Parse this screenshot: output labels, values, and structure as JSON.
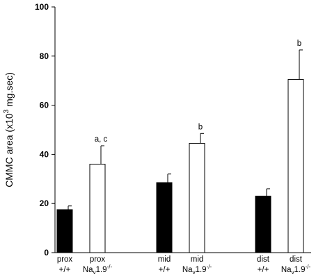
{
  "chart_data": {
    "type": "bar",
    "ylabel": {
      "prefix": "CMMC area (x10",
      "exp": "3",
      "suffix": " mg.sec)"
    },
    "ylim": [
      0,
      100
    ],
    "yticks": [
      "0",
      "20",
      "40",
      "60",
      "80",
      "100"
    ],
    "grid": false,
    "legend": "none",
    "bars": [
      {
        "line1": "prox",
        "line2": "+/+",
        "genotype": "wildtype",
        "value": 17.5,
        "error": 1.5,
        "color": "#000000",
        "annotation": ""
      },
      {
        "line1": "prox",
        "line2_base": "Na",
        "line2_sub": "v",
        "line2_mid": "1.9",
        "line2_sup": "-/-",
        "genotype": "knockout",
        "value": 36,
        "error": 7.5,
        "color": "#ffffff",
        "annotation": "a, c"
      },
      {
        "line1": "mid",
        "line2": "+/+",
        "genotype": "wildtype",
        "value": 28.5,
        "error": 3.5,
        "color": "#000000",
        "annotation": ""
      },
      {
        "line1": "mid",
        "line2_base": "Na",
        "line2_sub": "v",
        "line2_mid": "1.9",
        "line2_sup": "-/-",
        "genotype": "knockout",
        "value": 44.5,
        "error": 4.0,
        "color": "#ffffff",
        "annotation": "b"
      },
      {
        "line1": "dist",
        "line2": "+/+",
        "genotype": "wildtype",
        "value": 23,
        "error": 3.0,
        "color": "#000000",
        "annotation": ""
      },
      {
        "line1": "dist",
        "line2_base": "Na",
        "line2_sub": "v",
        "line2_mid": "1.9",
        "line2_sup": "-/-",
        "genotype": "knockout",
        "value": 70.5,
        "error": 12.0,
        "color": "#ffffff",
        "annotation": "b"
      }
    ]
  }
}
